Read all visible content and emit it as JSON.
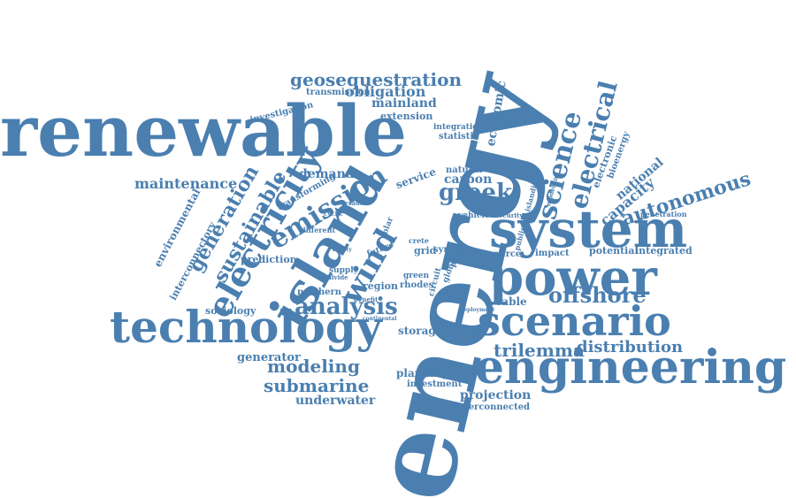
{
  "colors": {
    "ink": "#4a7fb0",
    "background": "#ffffff"
  },
  "words": [
    "energy",
    "renewable",
    "system",
    "power",
    "engineering",
    "technology",
    "scenario",
    "island",
    "electricity",
    "wind",
    "geosequestration",
    "emission",
    "science",
    "electrical",
    "analysis",
    "greek",
    "autonomous",
    "generation",
    "sustainable",
    "offshore",
    "trilemma",
    "submarine",
    "modeling",
    "distribution",
    "obligation",
    "mainland",
    "economic",
    "capacity",
    "national",
    "maintenance",
    "demand",
    "carbon",
    "transmission",
    "extension",
    "investigation",
    "integration",
    "statistic",
    "electronic",
    "bioenergy",
    "environmental",
    "interconnectory",
    "prediction",
    "sociology",
    "generator",
    "underwater",
    "projection",
    "planning",
    "investment",
    "interconnected",
    "storage",
    "cable",
    "potential",
    "integrated",
    "impact",
    "source",
    "region",
    "northern",
    "rhodes",
    "green",
    "grid",
    "syros",
    "crete",
    "service",
    "natural",
    "transforming",
    "different",
    "supply",
    "future",
    "solar",
    "vehicle",
    "penetration",
    "circuit",
    "global",
    "paper",
    "islanding",
    "modelling",
    "public",
    "security",
    "cyclades",
    "cyclic",
    "benefit",
    "continental",
    "topic",
    "following",
    "deployment",
    "reality",
    "divide"
  ]
}
